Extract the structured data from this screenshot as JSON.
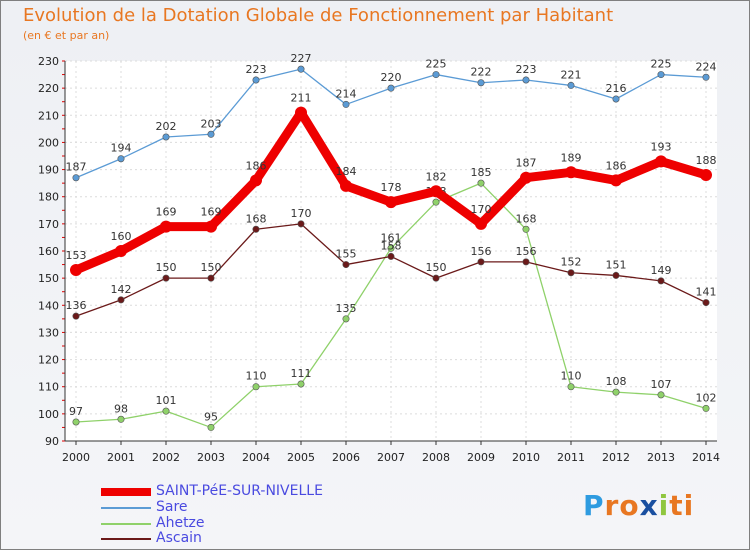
{
  "chart_data": {
    "type": "line",
    "title": "Evolution de la Dotation Globale de Fonctionnement par Habitant",
    "subtitle": "(en € et par an)",
    "xlabel": "",
    "ylabel": "",
    "ylim": [
      90,
      230
    ],
    "yticks": [
      90,
      100,
      110,
      120,
      130,
      140,
      150,
      160,
      170,
      180,
      190,
      200,
      210,
      220,
      230
    ],
    "categories": [
      "2000",
      "2001",
      "2002",
      "2003",
      "2004",
      "2005",
      "2006",
      "2007",
      "2008",
      "2009",
      "2010",
      "2011",
      "2012",
      "2013",
      "2014"
    ],
    "grid": true,
    "legend_position": "bottom-left",
    "series": [
      {
        "name": "Sare",
        "color": "#5b9bd5",
        "values": [
          187,
          194,
          202,
          203,
          223,
          227,
          214,
          220,
          225,
          222,
          223,
          221,
          216,
          225,
          224
        ]
      },
      {
        "name": "Ahetze",
        "color": "#8fd16a",
        "values": [
          97,
          98,
          101,
          95,
          110,
          111,
          135,
          161,
          178,
          185,
          168,
          110,
          108,
          107,
          102
        ]
      },
      {
        "name": "Ascain",
        "color": "#6b1a1a",
        "values": [
          136,
          142,
          150,
          150,
          168,
          170,
          155,
          158,
          150,
          156,
          156,
          152,
          151,
          149,
          141
        ]
      },
      {
        "name": "SAINT-PéE-SUR-NIVELLE",
        "color": "#ee0000",
        "values": [
          153,
          160,
          169,
          169,
          186,
          211,
          184,
          178,
          182,
          170,
          187,
          189,
          186,
          193,
          188
        ]
      }
    ]
  },
  "legend": {
    "items": [
      {
        "label": "SAINT-PéE-SUR-NIVELLE",
        "color": "#ee0000"
      },
      {
        "label": "Sare",
        "color": "#5b9bd5"
      },
      {
        "label": "Ahetze",
        "color": "#8fd16a"
      },
      {
        "label": "Ascain",
        "color": "#6b1a1a"
      }
    ]
  },
  "logo": {
    "letters": [
      "P",
      "r",
      "o",
      "x",
      "i",
      "t",
      "i"
    ],
    "colors": [
      "#2e9be0",
      "#e87722",
      "#e87722",
      "#1a4fa0",
      "#8fc63f",
      "#e87722",
      "#e87722"
    ]
  }
}
